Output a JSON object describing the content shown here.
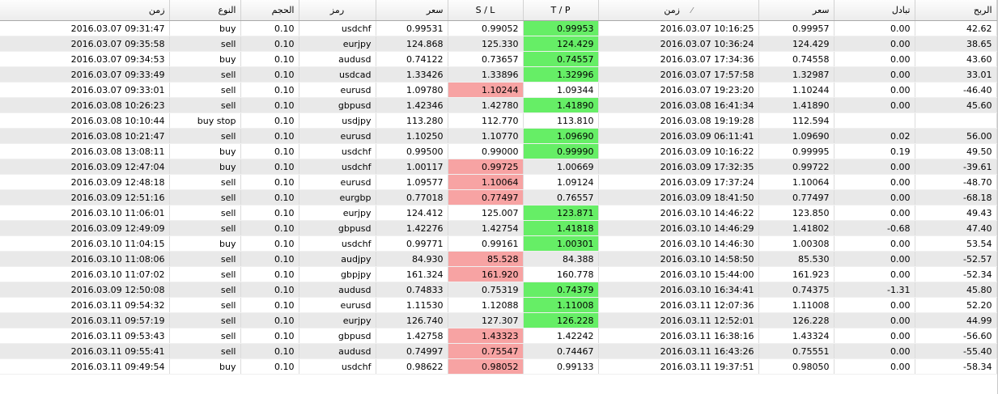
{
  "columns": [
    {
      "key": "open_time",
      "label": "زمن"
    },
    {
      "key": "type",
      "label": "النوع"
    },
    {
      "key": "volume",
      "label": "الحجم"
    },
    {
      "key": "symbol",
      "label": "رمز"
    },
    {
      "key": "open_price",
      "label": "سعر"
    },
    {
      "key": "sl",
      "label": "S / L"
    },
    {
      "key": "tp",
      "label": "T / P"
    },
    {
      "key": "close_time",
      "label": "زمن",
      "sort_icon": "sort-indicator-icon",
      "sort_glyph": "⁄"
    },
    {
      "key": "close_price",
      "label": "سعر"
    },
    {
      "key": "swap",
      "label": "تبادل"
    },
    {
      "key": "profit",
      "label": "الربح"
    }
  ],
  "colors": {
    "green": "#66ee66",
    "red": "#f7a3a3"
  },
  "rows": [
    {
      "open_time": "2016.03.07 09:31:47",
      "type": "buy",
      "volume": "0.10",
      "symbol": "usdchf",
      "open_price": "0.99531",
      "sl": "0.99052",
      "tp": "0.99953",
      "close_time": "2016.03.07 10:16:25",
      "close_price": "0.99957",
      "swap": "0.00",
      "profit": "42.62",
      "hl": "tp"
    },
    {
      "open_time": "2016.03.07 09:35:58",
      "type": "sell",
      "volume": "0.10",
      "symbol": "eurjpy",
      "open_price": "124.868",
      "sl": "125.330",
      "tp": "124.429",
      "close_time": "2016.03.07 10:36:24",
      "close_price": "124.429",
      "swap": "0.00",
      "profit": "38.65",
      "hl": "tp"
    },
    {
      "open_time": "2016.03.07 09:34:53",
      "type": "buy",
      "volume": "0.10",
      "symbol": "audusd",
      "open_price": "0.74122",
      "sl": "0.73657",
      "tp": "0.74557",
      "close_time": "2016.03.07 17:34:36",
      "close_price": "0.74558",
      "swap": "0.00",
      "profit": "43.60",
      "hl": "tp"
    },
    {
      "open_time": "2016.03.07 09:33:49",
      "type": "sell",
      "volume": "0.10",
      "symbol": "usdcad",
      "open_price": "1.33426",
      "sl": "1.33896",
      "tp": "1.32996",
      "close_time": "2016.03.07 17:57:58",
      "close_price": "1.32987",
      "swap": "0.00",
      "profit": "33.01",
      "hl": "tp"
    },
    {
      "open_time": "2016.03.07 09:33:01",
      "type": "sell",
      "volume": "0.10",
      "symbol": "eurusd",
      "open_price": "1.09780",
      "sl": "1.10244",
      "tp": "1.09344",
      "close_time": "2016.03.07 19:23:20",
      "close_price": "1.10244",
      "swap": "0.00",
      "profit": "-46.40",
      "hl": "sl"
    },
    {
      "open_time": "2016.03.08 10:26:23",
      "type": "sell",
      "volume": "0.10",
      "symbol": "gbpusd",
      "open_price": "1.42346",
      "sl": "1.42780",
      "tp": "1.41890",
      "close_time": "2016.03.08 16:41:34",
      "close_price": "1.41890",
      "swap": "0.00",
      "profit": "45.60",
      "hl": "tp"
    },
    {
      "open_time": "2016.03.08 10:10:44",
      "type": "buy stop",
      "volume": "0.10",
      "symbol": "usdjpy",
      "open_price": "113.280",
      "sl": "112.770",
      "tp": "113.810",
      "close_time": "2016.03.08 19:19:28",
      "close_price": "112.594",
      "swap": "",
      "profit": "",
      "hl": ""
    },
    {
      "open_time": "2016.03.08 10:21:47",
      "type": "sell",
      "volume": "0.10",
      "symbol": "eurusd",
      "open_price": "1.10250",
      "sl": "1.10770",
      "tp": "1.09690",
      "close_time": "2016.03.09 06:11:41",
      "close_price": "1.09690",
      "swap": "0.02",
      "profit": "56.00",
      "hl": "tp"
    },
    {
      "open_time": "2016.03.08 13:08:11",
      "type": "buy",
      "volume": "0.10",
      "symbol": "usdchf",
      "open_price": "0.99500",
      "sl": "0.99000",
      "tp": "0.99990",
      "close_time": "2016.03.09 10:16:22",
      "close_price": "0.99995",
      "swap": "0.19",
      "profit": "49.50",
      "hl": "tp"
    },
    {
      "open_time": "2016.03.09 12:47:04",
      "type": "buy",
      "volume": "0.10",
      "symbol": "usdchf",
      "open_price": "1.00117",
      "sl": "0.99725",
      "tp": "1.00669",
      "close_time": "2016.03.09 17:32:35",
      "close_price": "0.99722",
      "swap": "0.00",
      "profit": "-39.61",
      "hl": "sl"
    },
    {
      "open_time": "2016.03.09 12:48:18",
      "type": "sell",
      "volume": "0.10",
      "symbol": "eurusd",
      "open_price": "1.09577",
      "sl": "1.10064",
      "tp": "1.09124",
      "close_time": "2016.03.09 17:37:24",
      "close_price": "1.10064",
      "swap": "0.00",
      "profit": "-48.70",
      "hl": "sl"
    },
    {
      "open_time": "2016.03.09 12:51:16",
      "type": "sell",
      "volume": "0.10",
      "symbol": "eurgbp",
      "open_price": "0.77018",
      "sl": "0.77497",
      "tp": "0.76557",
      "close_time": "2016.03.09 18:41:50",
      "close_price": "0.77497",
      "swap": "0.00",
      "profit": "-68.18",
      "hl": "sl"
    },
    {
      "open_time": "2016.03.10 11:06:01",
      "type": "sell",
      "volume": "0.10",
      "symbol": "eurjpy",
      "open_price": "124.412",
      "sl": "125.007",
      "tp": "123.871",
      "close_time": "2016.03.10 14:46:22",
      "close_price": "123.850",
      "swap": "0.00",
      "profit": "49.43",
      "hl": "tp"
    },
    {
      "open_time": "2016.03.09 12:49:09",
      "type": "sell",
      "volume": "0.10",
      "symbol": "gbpusd",
      "open_price": "1.42276",
      "sl": "1.42754",
      "tp": "1.41818",
      "close_time": "2016.03.10 14:46:29",
      "close_price": "1.41802",
      "swap": "-0.68",
      "profit": "47.40",
      "hl": "tp"
    },
    {
      "open_time": "2016.03.10 11:04:15",
      "type": "buy",
      "volume": "0.10",
      "symbol": "usdchf",
      "open_price": "0.99771",
      "sl": "0.99161",
      "tp": "1.00301",
      "close_time": "2016.03.10 14:46:30",
      "close_price": "1.00308",
      "swap": "0.00",
      "profit": "53.54",
      "hl": "tp"
    },
    {
      "open_time": "2016.03.10 11:08:06",
      "type": "sell",
      "volume": "0.10",
      "symbol": "audjpy",
      "open_price": "84.930",
      "sl": "85.528",
      "tp": "84.388",
      "close_time": "2016.03.10 14:58:50",
      "close_price": "85.530",
      "swap": "0.00",
      "profit": "-52.57",
      "hl": "sl"
    },
    {
      "open_time": "2016.03.10 11:07:02",
      "type": "sell",
      "volume": "0.10",
      "symbol": "gbpjpy",
      "open_price": "161.324",
      "sl": "161.920",
      "tp": "160.778",
      "close_time": "2016.03.10 15:44:00",
      "close_price": "161.923",
      "swap": "0.00",
      "profit": "-52.34",
      "hl": "sl"
    },
    {
      "open_time": "2016.03.09 12:50:08",
      "type": "sell",
      "volume": "0.10",
      "symbol": "audusd",
      "open_price": "0.74833",
      "sl": "0.75319",
      "tp": "0.74379",
      "close_time": "2016.03.10 16:34:41",
      "close_price": "0.74375",
      "swap": "-1.31",
      "profit": "45.80",
      "hl": "tp"
    },
    {
      "open_time": "2016.03.11 09:54:32",
      "type": "sell",
      "volume": "0.10",
      "symbol": "eurusd",
      "open_price": "1.11530",
      "sl": "1.12088",
      "tp": "1.11008",
      "close_time": "2016.03.11 12:07:36",
      "close_price": "1.11008",
      "swap": "0.00",
      "profit": "52.20",
      "hl": "tp"
    },
    {
      "open_time": "2016.03.11 09:57:19",
      "type": "sell",
      "volume": "0.10",
      "symbol": "eurjpy",
      "open_price": "126.740",
      "sl": "127.307",
      "tp": "126.228",
      "close_time": "2016.03.11 12:52:01",
      "close_price": "126.228",
      "swap": "0.00",
      "profit": "44.99",
      "hl": "tp"
    },
    {
      "open_time": "2016.03.11 09:53:43",
      "type": "sell",
      "volume": "0.10",
      "symbol": "gbpusd",
      "open_price": "1.42758",
      "sl": "1.43323",
      "tp": "1.42242",
      "close_time": "2016.03.11 16:38:16",
      "close_price": "1.43324",
      "swap": "0.00",
      "profit": "-56.60",
      "hl": "sl"
    },
    {
      "open_time": "2016.03.11 09:55:41",
      "type": "sell",
      "volume": "0.10",
      "symbol": "audusd",
      "open_price": "0.74997",
      "sl": "0.75547",
      "tp": "0.74467",
      "close_time": "2016.03.11 16:43:26",
      "close_price": "0.75551",
      "swap": "0.00",
      "profit": "-55.40",
      "hl": "sl"
    },
    {
      "open_time": "2016.03.11 09:49:54",
      "type": "buy",
      "volume": "0.10",
      "symbol": "usdchf",
      "open_price": "0.98622",
      "sl": "0.98052",
      "tp": "0.99133",
      "close_time": "2016.03.11 19:37:51",
      "close_price": "0.98050",
      "swap": "0.00",
      "profit": "-58.34",
      "hl": "sl"
    }
  ]
}
